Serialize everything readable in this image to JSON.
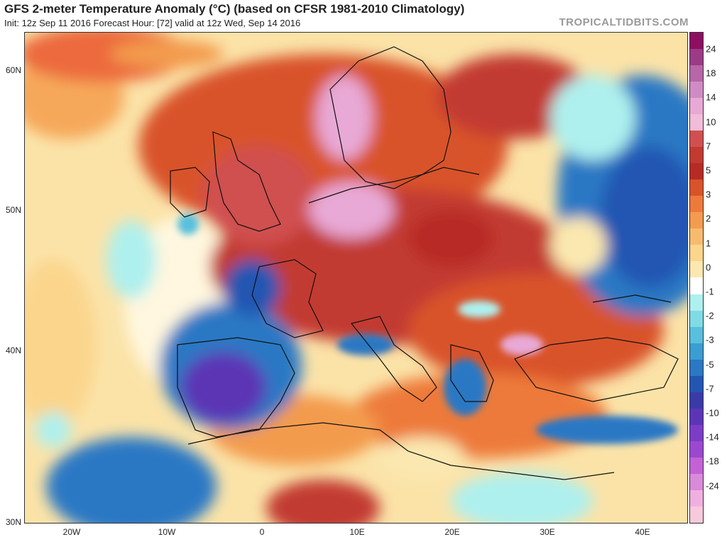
{
  "header": {
    "title": "GFS 2-meter Temperature Anomaly (°C) (based on CFSR 1981-2010 Climatology)",
    "subtitle": "Init: 12z Sep 11 2016   Forecast Hour: [72]   valid at 12z Wed, Sep 14 2016",
    "brand": "TROPICALTIDBITS.COM"
  },
  "map": {
    "lat_labels": [
      "60N",
      "50N",
      "40N",
      "30N"
    ],
    "lon_labels": [
      "20W",
      "10W",
      "0",
      "10E",
      "20E",
      "30E",
      "40E"
    ]
  },
  "colorbar": {
    "labels": [
      "24",
      "18",
      "14",
      "10",
      "7",
      "5",
      "3",
      "2",
      "1",
      "0",
      "-1",
      "-2",
      "-3",
      "-5",
      "-7",
      "-10",
      "-14",
      "-18",
      "-24"
    ],
    "colors": [
      "#8e0f62",
      "#9c3a86",
      "#b766a8",
      "#cf8cc4",
      "#e8a9d6",
      "#f1bcd9",
      "#d05050",
      "#c23a30",
      "#b82a26",
      "#d9532a",
      "#ed7a3a",
      "#f39b4e",
      "#f7bb6e",
      "#fbd58c",
      "#fbe8b0",
      "#ffffff",
      "#aef0ee",
      "#7fdce4",
      "#58bfdc",
      "#3b9dd2",
      "#2b78c4",
      "#2356b2",
      "#3a3aa8",
      "#5b35b5",
      "#7b3dc6",
      "#9a49cf",
      "#c262d6",
      "#d98ad8",
      "#f0b0df",
      "#f6c9dc"
    ]
  }
}
